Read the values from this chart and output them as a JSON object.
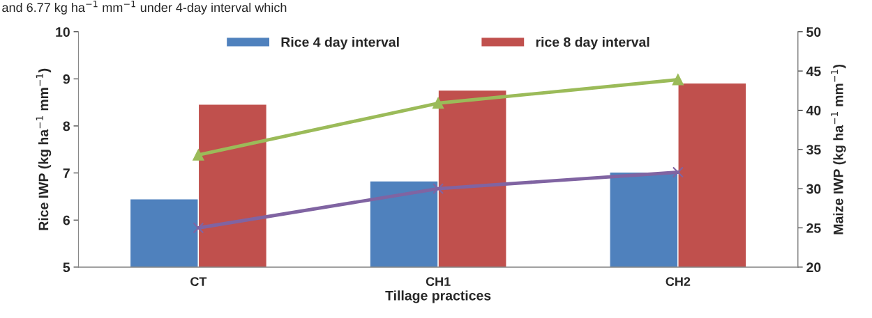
{
  "chart_data": {
    "type": "bar",
    "xlabel": "Tillage practices",
    "ylabel": "Rice IWP (kg ha$^{−1}$ mm$^{−1}$)",
    "y2label": "Maize IWP (kg ha$^{−1}$ mm$^{−1}$)",
    "annotations": [
      "and 6.77 kg ha$^{−1}$ mm$^{−1}$ under 4-day interval which"
    ],
    "categories": [
      "CT",
      "CH1",
      "CH2"
    ],
    "series": [
      {
        "name": "Rice 4 day interval",
        "color": "#4f81bd",
        "values": [
          6.45,
          6.83,
          7.02
        ]
      },
      {
        "name": "rice 8 day interval",
        "color": "#c0504d",
        "values": [
          8.46,
          8.76,
          8.91
        ]
      },
      {
        "type": "line",
        "axis": "y2",
        "color": "#9bbb59",
        "marker": "triangle",
        "values": [
          34.3,
          40.9,
          43.9
        ]
      },
      {
        "type": "line",
        "axis": "y2",
        "color": "#8064a2",
        "marker": "cross",
        "values": [
          25.0,
          30.0,
          32.1
        ]
      }
    ],
    "ylim": [
      5,
      10
    ],
    "yticks": [
      5,
      6,
      7,
      8,
      9,
      10
    ],
    "y2lim": [
      20,
      50
    ],
    "y2ticks": [
      20,
      25,
      30,
      35,
      40,
      45,
      50
    ],
    "legend": "top",
    "grid": false
  }
}
